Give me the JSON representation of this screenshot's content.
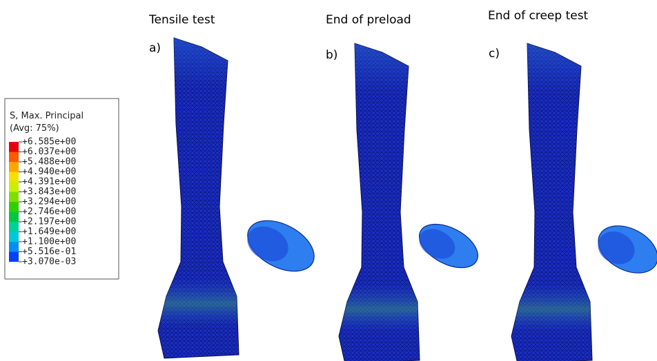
{
  "legend": {
    "title": [
      "S, Max. Principal",
      "(Avg: 75%)"
    ],
    "labels": [
      "+6.585e+00",
      "+6.037e+00",
      "+5.488e+00",
      "+4.940e+00",
      "+4.391e+00",
      "+3.843e+00",
      "+3.294e+00",
      "+2.746e+00",
      "+2.197e+00",
      "+1.649e+00",
      "+1.100e+00",
      "+5.516e-01",
      "+3.070e-03"
    ]
  },
  "panels": [
    {
      "title": "Tensile test",
      "letter": "a)"
    },
    {
      "title": "End of preload",
      "letter": "b)"
    },
    {
      "title": "End of creep test",
      "letter": "c)"
    }
  ]
}
